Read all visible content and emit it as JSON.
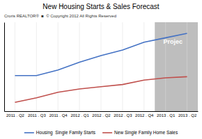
{
  "chart_data": {
    "type": "line",
    "title": "New Housing Starts & Sales Forecast",
    "subtitle": "Croris REALTOR®  ■  © Copyright 2012 All Rights Reserved",
    "categories": [
      "2011 . Q2",
      "2011 . Q3",
      "2011 . Q4",
      "2012 . Q1",
      "2012 . Q2",
      "2012 . Q3",
      "2012 . Q4",
      "2013 . Q1",
      "2013 . Q2"
    ],
    "series": [
      {
        "name": "Housing  Single Family Starts",
        "color": "#4472C4",
        "values": [
          42,
          42,
          47,
          54,
          60,
          65,
          72,
          76,
          80
        ]
      },
      {
        "name": "New Single Family Home Sales",
        "color": "#C0504D",
        "values": [
          18,
          22,
          27,
          30,
          32,
          34,
          38,
          40,
          41
        ]
      }
    ],
    "ylim": [
      10,
      90
    ],
    "grid": true,
    "tick_labels": "x",
    "legend": "bottom",
    "annotations": [
      {
        "text": "Projec",
        "x": "2013 . Q1",
        "y": 72
      }
    ],
    "shaded_region": {
      "from": "2013 . Q1",
      "color": "#BEBEBE"
    }
  }
}
